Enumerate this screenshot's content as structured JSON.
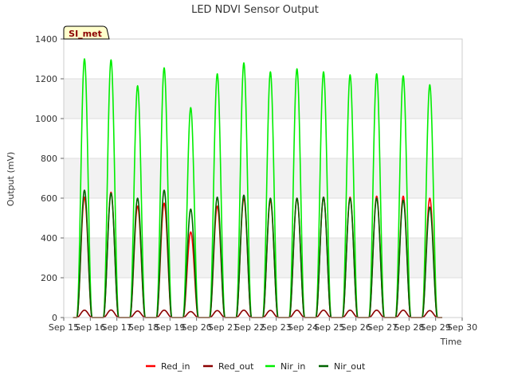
{
  "chart_data": {
    "type": "line",
    "title": "LED NDVI Sensor Output",
    "xlabel": "Time",
    "ylabel": "Output (mV)",
    "badge": "SI_met",
    "ylim": [
      0,
      1400
    ],
    "yticks": [
      0,
      200,
      400,
      600,
      800,
      1000,
      1200,
      1400
    ],
    "xlim": [
      15,
      30
    ],
    "xticks": [
      15,
      16,
      17,
      18,
      19,
      20,
      21,
      22,
      23,
      24,
      25,
      26,
      27,
      28,
      29,
      30
    ],
    "xtick_labels": [
      "Sep 15",
      "Sep 16",
      "Sep 17",
      "Sep 18",
      "Sep 19",
      "Sep 20",
      "Sep 21",
      "Sep 22",
      "Sep 23",
      "Sep 24",
      "Sep 25",
      "Sep 26",
      "Sep 27",
      "Sep 28",
      "Sep 29",
      "Sep 30"
    ],
    "data_start_day": 15.35,
    "data_end_day": 29.25,
    "day_centers": [
      15.78,
      16.78,
      17.78,
      18.78,
      19.78,
      20.78,
      21.78,
      22.78,
      23.78,
      24.78,
      25.78,
      26.78,
      27.78,
      28.78
    ],
    "series": [
      {
        "name": "Red_in",
        "color": "#ff0000",
        "peaks": [
          605,
          630,
          560,
          575,
          430,
          560,
          600,
          590,
          600,
          605,
          605,
          610,
          610,
          600
        ]
      },
      {
        "name": "Red_out",
        "color": "#8b0000",
        "peaks": [
          37,
          38,
          33,
          37,
          30,
          35,
          37,
          36,
          37,
          37,
          37,
          37,
          37,
          35
        ]
      },
      {
        "name": "Nir_in",
        "color": "#00ee00",
        "peaks": [
          1300,
          1295,
          1165,
          1255,
          1055,
          1225,
          1280,
          1235,
          1250,
          1235,
          1220,
          1225,
          1215,
          1170
        ]
      },
      {
        "name": "Nir_out",
        "color": "#006400",
        "peaks": [
          640,
          625,
          600,
          640,
          545,
          605,
          615,
          600,
          600,
          605,
          600,
          600,
          590,
          555
        ]
      }
    ],
    "legend": [
      "Red_in",
      "Red_out",
      "Nir_in",
      "Nir_out"
    ],
    "grid": "horizontal bands",
    "legend_position": "bottom-center"
  }
}
